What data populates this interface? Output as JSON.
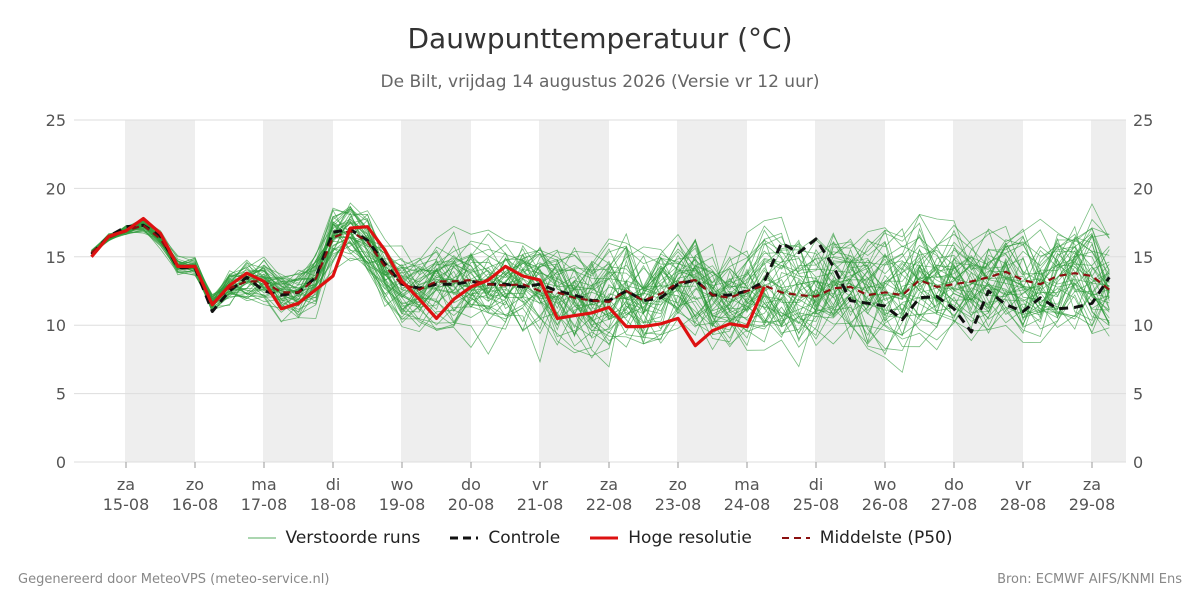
{
  "header": {
    "title": "Dauwpunttemperatuur (°C)",
    "subtitle": "De Bilt, vrijdag 14 augustus 2026 (Versie vr 12 uur)"
  },
  "footer": {
    "left": "Gegenereerd door MeteoVPS (meteo-service.nl)",
    "right": "Bron: ECMWF AIFS/KNMI Ens"
  },
  "colors": {
    "ensemble": "#2e9b3a",
    "control": "#111111",
    "hires": "#dd1111",
    "median": "#8b1010",
    "weekend_band": "#eeeeee",
    "grid": "#dddddd"
  },
  "chart_data": {
    "type": "line",
    "x_unit": "days",
    "x_start": "2026-08-14 12:00",
    "x_step_hours": 6,
    "ylim": [
      0,
      25
    ],
    "yticks": [
      0,
      5,
      10,
      15,
      20,
      25
    ],
    "grid": true,
    "legend_position": "bottom",
    "xticks": [
      {
        "day": "za",
        "date": "15-08"
      },
      {
        "day": "zo",
        "date": "16-08"
      },
      {
        "day": "ma",
        "date": "17-08"
      },
      {
        "day": "di",
        "date": "18-08"
      },
      {
        "day": "wo",
        "date": "19-08"
      },
      {
        "day": "do",
        "date": "20-08"
      },
      {
        "day": "vr",
        "date": "21-08"
      },
      {
        "day": "za",
        "date": "22-08"
      },
      {
        "day": "zo",
        "date": "23-08"
      },
      {
        "day": "ma",
        "date": "24-08"
      },
      {
        "day": "di",
        "date": "25-08"
      },
      {
        "day": "wo",
        "date": "26-08"
      },
      {
        "day": "do",
        "date": "27-08"
      },
      {
        "day": "vr",
        "date": "28-08"
      },
      {
        "day": "za",
        "date": "29-08"
      }
    ],
    "series": [
      {
        "name": "Controle",
        "style": "dashed",
        "values": [
          15.2,
          16.5,
          17.2,
          17.3,
          16.5,
          14.2,
          14.2,
          11.0,
          12.5,
          13.5,
          12.5,
          12.2,
          12.4,
          13.5,
          16.8,
          17.0,
          16.2,
          14.5,
          13.0,
          12.7,
          13.0,
          13.0,
          13.2,
          13.0,
          13.0,
          12.8,
          13.0,
          12.5,
          12.2,
          11.8,
          11.8,
          12.5,
          11.8,
          12.0,
          13.0,
          13.3,
          12.2,
          12.2,
          12.5,
          13.2,
          16.0,
          15.3,
          16.3,
          14.3,
          11.8,
          11.6,
          11.4,
          10.4,
          12.0,
          12.1,
          11.2,
          9.5,
          12.5,
          11.5,
          11.0,
          12.0,
          11.2,
          11.3,
          11.6,
          13.5
        ]
      },
      {
        "name": "Hoge resolutie",
        "style": "solid",
        "values": [
          15.0,
          16.5,
          16.9,
          17.8,
          16.7,
          14.3,
          14.3,
          11.5,
          12.9,
          13.8,
          13.2,
          11.2,
          11.6,
          12.6,
          13.6,
          17.1,
          17.2,
          15.5,
          13.2,
          11.9,
          10.5,
          11.9,
          12.8,
          13.3,
          14.3,
          13.6,
          13.3,
          10.5,
          10.7,
          10.9,
          11.3,
          9.9,
          9.9,
          10.1,
          10.5,
          8.5,
          9.6,
          10.1,
          9.9,
          12.8
        ]
      },
      {
        "name": "Middelste (P50)",
        "style": "dashed",
        "values": [
          15.3,
          16.4,
          16.9,
          17.3,
          16.3,
          14.3,
          14.2,
          11.6,
          12.7,
          13.2,
          13.2,
          12.4,
          12.4,
          13.4,
          16.4,
          16.9,
          16.1,
          14.3,
          13.0,
          12.6,
          13.2,
          13.2,
          13.3,
          13.0,
          12.9,
          13.0,
          12.5,
          12.4,
          12.0,
          11.8,
          11.7,
          12.5,
          11.8,
          12.3,
          13.1,
          13.3,
          12.2,
          12.0,
          12.5,
          12.9,
          12.4,
          12.2,
          12.1,
          12.7,
          12.8,
          12.2,
          12.4,
          12.2,
          13.3,
          12.8,
          13.0,
          13.2,
          13.5,
          13.9,
          13.3,
          13.0,
          13.6,
          13.8,
          13.6,
          12.6
        ]
      }
    ],
    "ensemble": {
      "name": "Verstoorde runs",
      "members": 50
    }
  }
}
